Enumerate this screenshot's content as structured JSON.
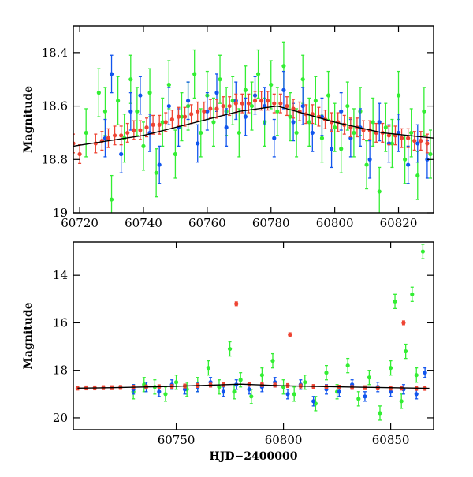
{
  "chart_data": [
    {
      "type": "scatter",
      "title": "",
      "xlabel": "",
      "ylabel": "Magnitude",
      "xlim": [
        60718,
        60831
      ],
      "ylim": [
        19.0,
        18.3
      ],
      "y_inverted": true,
      "xticks": [
        60720,
        60740,
        60760,
        60780,
        60800,
        60820
      ],
      "xtick_labels": [
        "60720",
        "60740",
        "60760",
        "60780",
        "60800",
        "60820"
      ],
      "yticks": [
        18.4,
        18.6,
        18.8,
        19.0
      ],
      "ytick_labels": [
        "18.4",
        "18.6",
        "18.8",
        "19"
      ],
      "grid": false,
      "legend": "none",
      "trend_line": {
        "x": [
          60718,
          60740,
          60770,
          60782,
          60800,
          60815,
          60831
        ],
        "y": [
          18.75,
          18.71,
          18.62,
          18.6,
          18.66,
          18.7,
          18.72
        ]
      },
      "series": [
        {
          "color": "#33ee33",
          "x": [
            60722,
            60726,
            60728,
            60730,
            60732,
            60734,
            60736,
            60738,
            60740,
            60742,
            60744,
            60746,
            60748,
            60750,
            60752,
            60754,
            60756,
            60758,
            60760,
            60762,
            60764,
            60766,
            60768,
            60770,
            60772,
            60774,
            60776,
            60778,
            60780,
            60782,
            60784,
            60786,
            60788,
            60790,
            60792,
            60794,
            60796,
            60798,
            60800,
            60802,
            60804,
            60806,
            60808,
            60810,
            60812,
            60814,
            60816,
            60818,
            60820,
            60822,
            60824,
            60826,
            60828,
            60830
          ],
          "y": [
            18.7,
            18.55,
            18.62,
            18.95,
            18.58,
            18.72,
            18.5,
            18.62,
            18.75,
            18.55,
            18.85,
            18.66,
            18.52,
            18.78,
            18.64,
            18.6,
            18.48,
            18.7,
            18.56,
            18.66,
            18.5,
            18.62,
            18.58,
            18.7,
            18.54,
            18.6,
            18.48,
            18.66,
            18.52,
            18.62,
            18.45,
            18.64,
            18.7,
            18.5,
            18.66,
            18.58,
            18.72,
            18.56,
            18.68,
            18.76,
            18.6,
            18.7,
            18.62,
            18.82,
            18.66,
            18.92,
            18.68,
            18.74,
            18.56,
            18.8,
            18.7,
            18.86,
            18.62,
            18.78
          ],
          "err": 0.09
        },
        {
          "color": "#1155ee",
          "x": [
            60728,
            60730,
            60733,
            60736,
            60739,
            60742,
            60745,
            60748,
            60751,
            60754,
            60757,
            60760,
            60763,
            60766,
            60769,
            60772,
            60775,
            60778,
            60781,
            60784,
            60787,
            60790,
            60793,
            60796,
            60799,
            60802,
            60805,
            60808,
            60811,
            60814,
            60817,
            60820,
            60823,
            60826,
            60829
          ],
          "y": [
            18.72,
            18.48,
            18.78,
            18.62,
            18.56,
            18.7,
            18.82,
            18.6,
            18.68,
            18.58,
            18.74,
            18.62,
            18.55,
            18.68,
            18.58,
            18.64,
            18.56,
            18.6,
            18.72,
            18.54,
            18.66,
            18.6,
            18.7,
            18.64,
            18.76,
            18.62,
            18.72,
            18.68,
            18.8,
            18.66,
            18.74,
            18.7,
            18.82,
            18.74,
            18.8
          ],
          "err": 0.07
        },
        {
          "color": "#ee4433",
          "x": [
            60718,
            60720,
            60725,
            60727,
            60729,
            60731,
            60733,
            60735,
            60737,
            60739,
            60741,
            60743,
            60745,
            60747,
            60749,
            60751,
            60753,
            60755,
            60757,
            60759,
            60761,
            60763,
            60765,
            60767,
            60769,
            60771,
            60773,
            60775,
            60777,
            60779,
            60781,
            60783,
            60785,
            60787,
            60789,
            60791,
            60793,
            60795,
            60797,
            60799,
            60801,
            60803,
            60805,
            60807,
            60809,
            60811,
            60813,
            60815,
            60817,
            60819,
            60821,
            60823,
            60825,
            60827,
            60829
          ],
          "y": [
            18.74,
            18.78,
            18.74,
            18.73,
            18.72,
            18.71,
            18.71,
            18.7,
            18.69,
            18.69,
            18.68,
            18.67,
            18.67,
            18.66,
            18.65,
            18.64,
            18.64,
            18.63,
            18.62,
            18.62,
            18.61,
            18.61,
            18.6,
            18.6,
            18.59,
            18.59,
            18.59,
            18.58,
            18.58,
            18.58,
            18.59,
            18.59,
            18.6,
            18.61,
            18.62,
            18.63,
            18.63,
            18.64,
            18.65,
            18.66,
            18.66,
            18.67,
            18.68,
            18.68,
            18.69,
            18.69,
            18.7,
            18.7,
            18.71,
            18.71,
            18.72,
            18.72,
            18.73,
            18.73,
            18.74
          ],
          "err": 0.035
        }
      ]
    },
    {
      "type": "scatter",
      "title": "",
      "xlabel": "HJD−2400000",
      "ylabel": "Magnitude",
      "xlim": [
        60702,
        60870
      ],
      "ylim": [
        20.5,
        12.6
      ],
      "y_inverted": true,
      "xticks": [
        60750,
        60800,
        60850
      ],
      "xtick_labels": [
        "60750",
        "60800",
        "60850"
      ],
      "yticks": [
        14,
        16,
        18,
        20
      ],
      "ytick_labels": [
        "14",
        "16",
        "18",
        "20"
      ],
      "grid": false,
      "legend": "none",
      "trend_line": {
        "x": [
          60704,
          60720,
          60750,
          60780,
          60800,
          60830,
          60868
        ],
        "y": [
          18.75,
          18.73,
          18.67,
          18.58,
          18.65,
          18.7,
          18.76
        ]
      },
      "series": [
        {
          "color": "#33ee33",
          "x": [
            60730,
            60735,
            60740,
            60745,
            60750,
            60755,
            60760,
            60765,
            60770,
            60775,
            60777,
            60780,
            60785,
            60790,
            60795,
            60800,
            60805,
            60810,
            60815,
            60820,
            60825,
            60830,
            60835,
            60840,
            60845,
            60850,
            60852,
            60855,
            60857,
            60860,
            60862,
            60865
          ],
          "y": [
            18.9,
            18.6,
            18.7,
            19.0,
            18.5,
            18.8,
            18.6,
            17.9,
            18.7,
            17.1,
            18.9,
            18.4,
            19.1,
            18.2,
            17.6,
            18.7,
            19.0,
            18.5,
            19.4,
            18.1,
            18.9,
            17.8,
            19.2,
            18.3,
            19.8,
            17.9,
            15.1,
            19.3,
            17.2,
            14.8,
            18.2,
            13.0
          ],
          "err": 0.3
        },
        {
          "color": "#1155ee",
          "x": [
            60730,
            60736,
            60742,
            60748,
            60754,
            60760,
            60766,
            60772,
            60778,
            60784,
            60790,
            60796,
            60802,
            60808,
            60814,
            60820,
            60826,
            60832,
            60838,
            60844,
            60850,
            60856,
            60862,
            60866
          ],
          "y": [
            18.8,
            18.7,
            18.9,
            18.6,
            18.8,
            18.7,
            18.5,
            18.9,
            18.6,
            18.8,
            18.7,
            18.5,
            19.0,
            18.6,
            19.3,
            18.8,
            18.9,
            18.6,
            19.1,
            18.7,
            18.9,
            18.8,
            19.0,
            18.1
          ],
          "err": 0.2
        },
        {
          "color": "#ee4433",
          "x": [
            60704,
            60708,
            60712,
            60716,
            60720,
            60724,
            60730,
            60736,
            60742,
            60748,
            60754,
            60760,
            60766,
            60772,
            60778,
            60784,
            60790,
            60796,
            60802,
            60803,
            60808,
            60814,
            60820,
            60826,
            60832,
            60838,
            60844,
            60850,
            60855,
            60856,
            60862,
            60866
          ],
          "y": [
            18.75,
            18.74,
            18.74,
            18.73,
            18.73,
            18.72,
            18.71,
            18.7,
            18.69,
            18.68,
            18.66,
            18.64,
            18.62,
            18.6,
            15.2,
            18.58,
            18.6,
            18.62,
            18.64,
            16.5,
            18.66,
            18.68,
            18.7,
            18.71,
            18.72,
            18.73,
            18.74,
            18.75,
            18.75,
            16.0,
            18.76,
            18.76
          ],
          "err": 0.08
        }
      ]
    }
  ]
}
